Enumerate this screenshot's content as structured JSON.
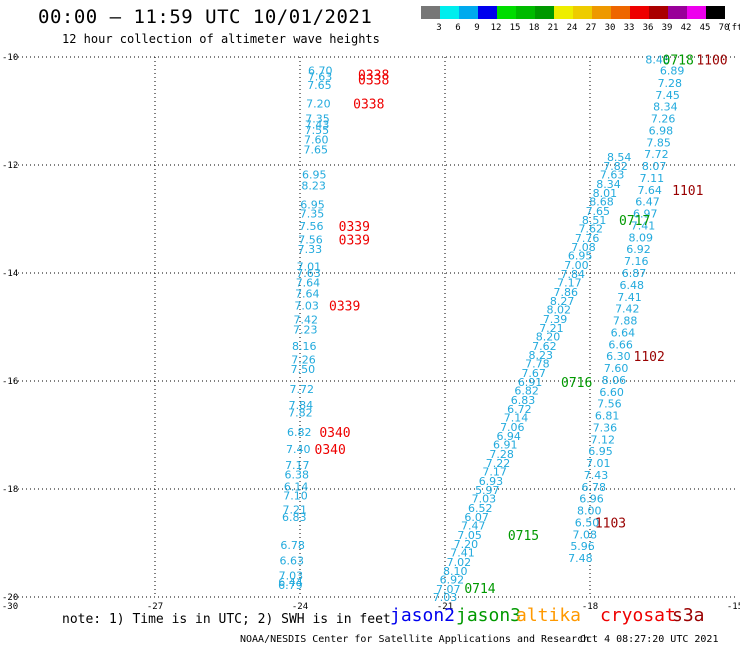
{
  "title": "00:00 – 11:59 UTC 10/01/2021",
  "subtitle": "12 hour collection of altimeter wave heights",
  "note": "note:  1) Time is in UTC; 2) SWH is in feet",
  "satellites": [
    {
      "name": "jason2",
      "color": "#0000ee"
    },
    {
      "name": "jason3",
      "color": "#009900"
    },
    {
      "name": "altika",
      "color": "#ff9900"
    },
    {
      "name": "cryosat",
      "color": "#ee0000"
    },
    {
      "name": "s3a",
      "color": "#990000"
    }
  ],
  "credit": "NOAA/NESDIS Center for Satellite Applications and Research",
  "timestamp": "Oct  4 08:27:20 UTC 2021",
  "legend": {
    "labels": [
      "3",
      "6",
      "9",
      "12",
      "15",
      "18",
      "21",
      "24",
      "27",
      "30",
      "33",
      "36",
      "39",
      "42",
      "45",
      "70",
      "(ft)"
    ],
    "colors": [
      "#777777",
      "#00eeee",
      "#00aaee",
      "#0000ee",
      "#00dd00",
      "#00bb00",
      "#009900",
      "#eeee00",
      "#eecc00",
      "#ee9900",
      "#ee6600",
      "#ee0000",
      "#aa0000",
      "#990099",
      "#ee00ee",
      "#000000"
    ]
  },
  "chart_data": {
    "type": "scatter",
    "xlim": [
      -30,
      -15
    ],
    "ylim": [
      -20,
      -10
    ],
    "xticks": [
      -30,
      -27,
      -24,
      -21,
      -18,
      -15
    ],
    "yticks": [
      -10,
      -12,
      -14,
      -16,
      -18,
      -20
    ],
    "xtick_labels": [
      "-30",
      "-27",
      "-24",
      "-21",
      "-18",
      "-15"
    ],
    "ytick_labels": [
      "-10",
      "-12",
      "-14",
      "-16",
      "-18",
      "-20"
    ],
    "grid": true,
    "swh_color": "#22aadd",
    "series": [
      {
        "lon": -23.58,
        "values": [
          "6.70",
          "7.63",
          "7.65",
          "7.20",
          "7.35",
          "7.43",
          "7.55",
          "7.60",
          "7.65",
          "6.95",
          "8.23",
          "6.95",
          "7.35",
          "7.56",
          "7.56",
          "7.33",
          "7.01",
          "7.63",
          "7.64",
          "7.64",
          "7.03",
          "7.42",
          "7.23",
          "8.16",
          "7.26",
          "7.50",
          "7.72",
          "7.84",
          "7.82",
          "6.82",
          "7.40",
          "7.17",
          "6.38",
          "6.14",
          "7.10",
          "7.21",
          "6.83",
          "6.78",
          "6.63",
          "7.03",
          "6.44",
          "6.79"
        ],
        "lats": [
          -10.25,
          -10.36,
          -10.52,
          -10.86,
          -11.14,
          -11.25,
          -11.35,
          -11.53,
          -11.71,
          -12.18,
          -12.38,
          -12.73,
          -12.9,
          -13.13,
          -13.38,
          -13.56,
          -13.88,
          -14.0,
          -14.18,
          -14.38,
          -14.6,
          -14.86,
          -15.05,
          -15.35,
          -15.6,
          -15.78,
          -16.15,
          -16.44,
          -16.58,
          -16.94,
          -17.26,
          -17.56,
          -17.73,
          -17.95,
          -18.12,
          -18.38,
          -18.52,
          -19.04,
          -19.32,
          -19.6,
          -19.72,
          -19.78
        ]
      },
      {
        "lon": -21.0,
        "values": [
          "7.03",
          "7.07",
          "6.92",
          "8.10",
          "7.02",
          "7.41",
          "7.20",
          "7.05",
          "7.47",
          "6.07",
          "6.52",
          "7.03",
          "5.97",
          "6.93",
          "7.17",
          "7.22",
          "7.28",
          "6.91",
          "6.94",
          "7.06",
          "7.14",
          "6.72",
          "6.83",
          "6.82",
          "6.91",
          "7.67",
          "7.78",
          "8.23",
          "7.62",
          "8.20",
          "7.21",
          "7.39",
          "8.02",
          "8.27",
          "7.86",
          "7.17",
          "7.84",
          "7.00",
          "6.95",
          "7.08",
          "7.76",
          "7.62",
          "8.51",
          "7.65",
          "8.68",
          "8.01",
          "8.34",
          "7.63",
          "7.82",
          "8.54",
          "8.46"
        ],
        "lats": [
          -20.0,
          -19.85,
          -19.68,
          -19.52,
          -19.35,
          -19.18,
          -19.02,
          -18.85,
          -18.68,
          -18.52,
          -18.35,
          -18.18,
          -18.02,
          -17.85,
          -17.68,
          -17.52,
          -17.35,
          -17.18,
          -17.02,
          -16.85,
          -16.68,
          -16.52,
          -16.35,
          -16.18,
          -16.02,
          -15.85,
          -15.68,
          -15.52,
          -15.35,
          -15.18,
          -15.02,
          -14.85,
          -14.68,
          -14.52,
          -14.35,
          -14.18,
          -14.02,
          -13.85,
          -13.68,
          -13.52,
          -13.35,
          -13.18,
          -13.02,
          -12.85,
          -12.68,
          -12.52,
          -12.35,
          -12.18,
          -12.02,
          -11.85,
          -10.05
        ],
        "lats_top_fix": [
          -10.05
        ]
      },
      {
        "lon": -18.4,
        "values": [
          "6.89",
          "7.28",
          "7.45",
          "8.34",
          "7.26",
          "6.98",
          "7.85",
          "7.72",
          "8.07",
          "7.11",
          "7.64",
          "6.47",
          "6.97",
          "7.41",
          "8.09",
          "6.92",
          "7.16",
          "6.87",
          "6.48",
          "7.41",
          "7.42",
          "7.88",
          "6.64",
          "6.66",
          "6.30",
          "7.60",
          "8.06",
          "6.60",
          "7.56",
          "6.81",
          "7.36",
          "7.12",
          "6.95",
          "7.01",
          "7.43",
          "6.78",
          "6.96",
          "8.00",
          "6.50",
          "7.08",
          "5.96",
          "7.48"
        ],
        "lats": [
          -10.25,
          -10.48,
          -10.7,
          -10.92,
          -11.14,
          -11.36,
          -11.58,
          -11.8,
          -12.02,
          -12.24,
          -12.46,
          -12.68,
          -12.9,
          -13.12,
          -13.34,
          -13.56,
          -13.78,
          -14.0,
          -14.22,
          -14.44,
          -14.66,
          -14.88,
          -15.1,
          -15.32,
          -15.54,
          -15.76,
          -15.98,
          -16.2,
          -16.42,
          -16.64,
          -16.86,
          -17.08,
          -17.3,
          -17.52,
          -17.74,
          -17.96,
          -18.18,
          -18.4,
          -18.62,
          -18.84,
          -19.06,
          -19.28
        ]
      }
    ],
    "time_labels": [
      {
        "text": "0338",
        "color": "#ee0000",
        "lon": -22.8,
        "lat": -10.32
      },
      {
        "text": "0338",
        "color": "#ee0000",
        "lon": -22.8,
        "lat": -10.42
      },
      {
        "text": "0338",
        "color": "#ee0000",
        "lon": -22.9,
        "lat": -10.86
      },
      {
        "text": "0339",
        "color": "#ee0000",
        "lon": -23.2,
        "lat": -13.13
      },
      {
        "text": "0339",
        "color": "#ee0000",
        "lon": -23.2,
        "lat": -13.38
      },
      {
        "text": "0339",
        "color": "#ee0000",
        "lon": -23.4,
        "lat": -14.6
      },
      {
        "text": "0340",
        "color": "#ee0000",
        "lon": -23.6,
        "lat": -16.94
      },
      {
        "text": "0340",
        "color": "#ee0000",
        "lon": -23.7,
        "lat": -17.26
      },
      {
        "text": "0718",
        "color": "#009900",
        "lon": -16.5,
        "lat": -10.05
      },
      {
        "text": "0717",
        "color": "#009900",
        "lon": -17.4,
        "lat": -13.02
      },
      {
        "text": "0716",
        "color": "#009900",
        "lon": -18.6,
        "lat": -16.02
      },
      {
        "text": "0715",
        "color": "#009900",
        "lon": -19.7,
        "lat": -18.85
      },
      {
        "text": "0714",
        "color": "#009900",
        "lon": -20.6,
        "lat": -19.83
      },
      {
        "text": "1100",
        "color": "#990000",
        "lon": -15.8,
        "lat": -10.05
      },
      {
        "text": "1101",
        "color": "#990000",
        "lon": -16.3,
        "lat": -12.46
      },
      {
        "text": "1102",
        "color": "#990000",
        "lon": -17.1,
        "lat": -15.54
      },
      {
        "text": "1103",
        "color": "#990000",
        "lon": -17.9,
        "lat": -18.62
      }
    ]
  }
}
